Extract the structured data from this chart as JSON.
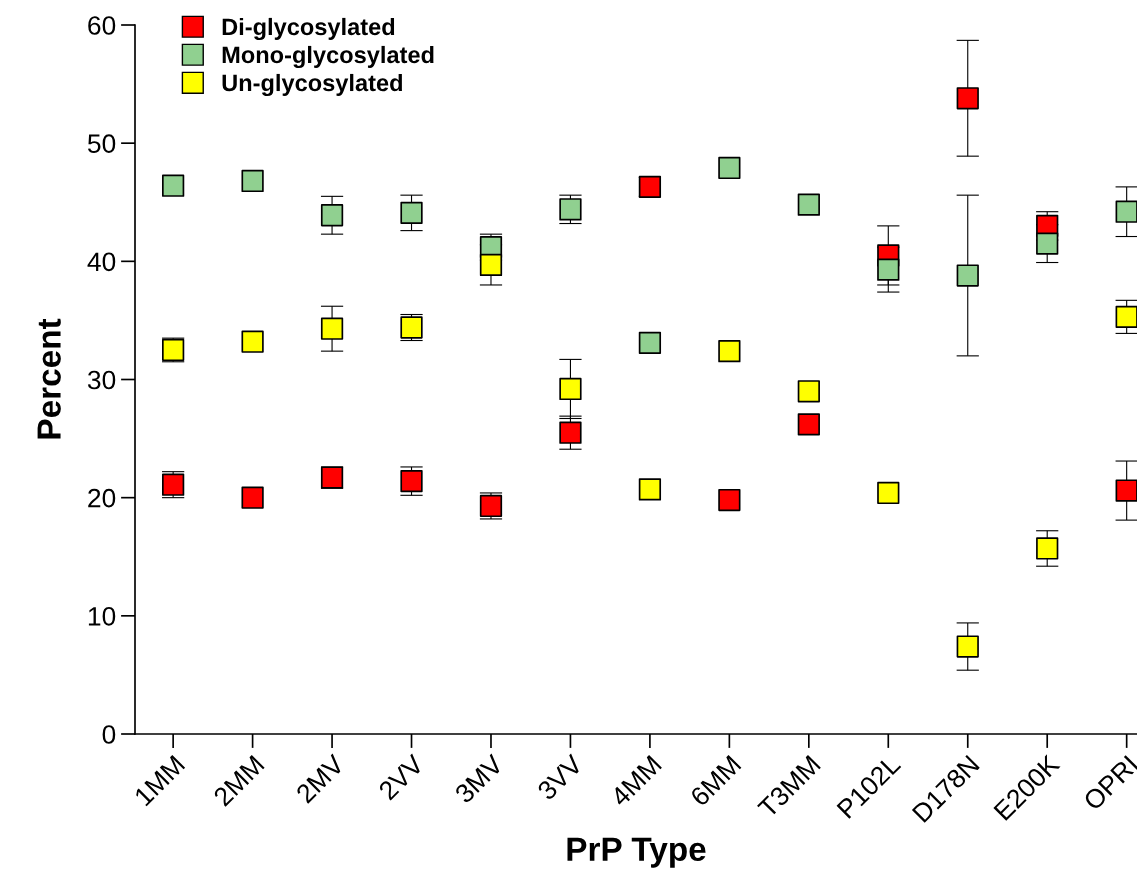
{
  "chart_data": {
    "type": "scatter",
    "xlabel": "PrP Type",
    "ylabel": "Percent",
    "categories": [
      "1MM",
      "2MM",
      "2MV",
      "2VV",
      "3MV",
      "3VV",
      "4MM",
      "6MM",
      "T3MM",
      "P102L",
      "D178N",
      "E200K",
      "OPRI"
    ],
    "series": [
      {
        "name": "Di-glycosylated",
        "color": "#ff0000",
        "values": [
          21.1,
          20.0,
          21.7,
          21.4,
          19.3,
          25.5,
          46.3,
          19.8,
          26.2,
          40.5,
          53.8,
          43.0,
          20.6
        ],
        "errors": [
          1.1,
          null,
          0.9,
          1.2,
          1.1,
          1.4,
          0.8,
          null,
          null,
          2.5,
          4.9,
          1.2,
          2.5
        ]
      },
      {
        "name": "Mono-glycosylated",
        "color": "#90d090",
        "values": [
          46.4,
          46.8,
          43.9,
          44.1,
          41.2,
          44.4,
          33.1,
          47.9,
          44.8,
          39.3,
          38.8,
          41.5,
          44.2
        ],
        "errors": [
          null,
          null,
          1.6,
          1.5,
          1.1,
          1.2,
          null,
          null,
          null,
          1.9,
          6.8,
          1.6,
          2.1
        ]
      },
      {
        "name": "Un-glycosylated",
        "color": "#ffff00",
        "values": [
          32.5,
          33.2,
          34.3,
          34.4,
          39.7,
          29.2,
          20.7,
          32.4,
          29.0,
          20.4,
          7.4,
          15.7,
          35.3
        ],
        "errors": [
          1.0,
          null,
          1.9,
          1.1,
          1.7,
          2.5,
          null,
          null,
          null,
          null,
          2.0,
          1.5,
          1.4
        ]
      }
    ],
    "ylim": [
      0,
      60
    ],
    "yticks": [
      0,
      10,
      20,
      30,
      40,
      50,
      60
    ],
    "marker": "square",
    "grid": false,
    "legend": "top left"
  }
}
